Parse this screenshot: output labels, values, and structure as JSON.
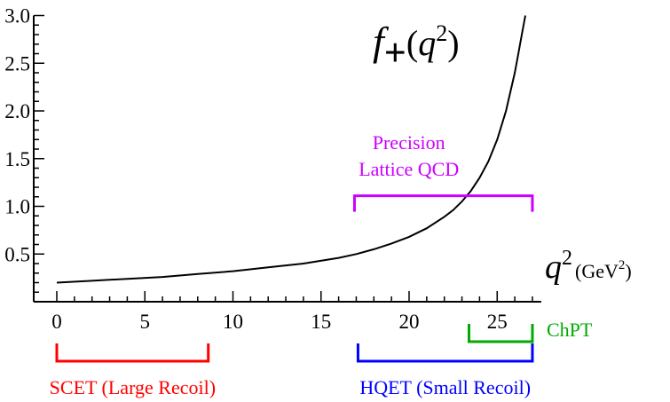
{
  "chart_data": {
    "type": "line",
    "title": "",
    "curve_label": {
      "f": "f",
      "sub": "+",
      "open": "(",
      "q": "q",
      "sup": "2",
      "close": ")"
    },
    "x_label": {
      "q": "q",
      "sup": "2",
      "unit_open": "(GeV",
      "unit_sup": "2",
      "unit_close": ")"
    },
    "xlim": [
      0,
      27.5
    ],
    "ylim": [
      0,
      3.0
    ],
    "x_ticks": [
      0,
      5,
      10,
      15,
      20,
      25
    ],
    "y_ticks": [
      0.5,
      1.0,
      1.5,
      2.0,
      2.5,
      3.0
    ],
    "y_tick_labels": [
      "0.5",
      "1.0",
      "1.5",
      "2.0",
      "2.5",
      "3.0"
    ],
    "grid": false,
    "series": [
      {
        "x": [
          0,
          2,
          4,
          6,
          8,
          10,
          12,
          14,
          16,
          17,
          18,
          19,
          20,
          21,
          22,
          22.5,
          23,
          23.5,
          24,
          24.5,
          25,
          25.5,
          26,
          26.2,
          26.4,
          26.6
        ],
        "y": [
          0.2,
          0.22,
          0.24,
          0.26,
          0.29,
          0.32,
          0.36,
          0.4,
          0.46,
          0.5,
          0.55,
          0.61,
          0.68,
          0.77,
          0.89,
          0.96,
          1.05,
          1.16,
          1.3,
          1.47,
          1.7,
          2.0,
          2.4,
          2.6,
          2.8,
          3.0
        ],
        "color": "#000000"
      }
    ],
    "ranges": [
      {
        "label_lines": [
          "Precision",
          "Lattice QCD"
        ],
        "from": 16.9,
        "to": 27.0,
        "color": "#cc00ff",
        "level": 1.11
      },
      {
        "label_lines": [
          "SCET (Large Recoil)"
        ],
        "from": 0.0,
        "to": 8.6,
        "color": "#ff0000",
        "below": true
      },
      {
        "label_lines": [
          "HQET (Small Recoil)"
        ],
        "from": 17.1,
        "to": 27.0,
        "color": "#0000ff",
        "below": true
      },
      {
        "label_lines": [
          "ChPT"
        ],
        "from": 23.4,
        "to": 27.0,
        "color": "#00aa00",
        "below": true
      }
    ]
  }
}
